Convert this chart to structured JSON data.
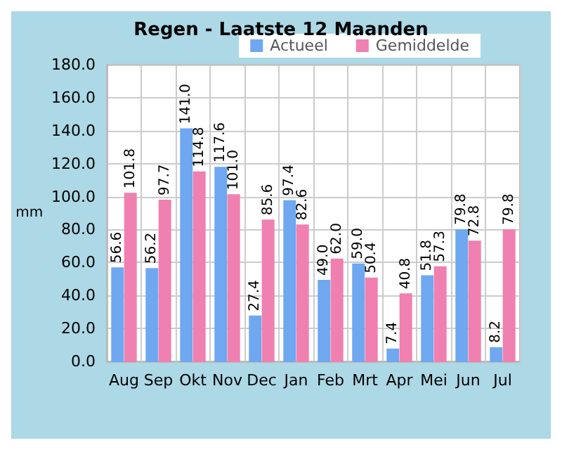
{
  "chart_data": {
    "type": "bar",
    "title": "Regen - Laatste 12 Maanden",
    "ylabel": "mm",
    "categories": [
      "Aug",
      "Sep",
      "Okt",
      "Nov",
      "Dec",
      "Jan",
      "Feb",
      "Mrt",
      "Apr",
      "Mei",
      "Jun",
      "Jul"
    ],
    "series": [
      {
        "name": "Actueel",
        "color": "#6fa8f0",
        "values": [
          56.6,
          56.2,
          141.0,
          117.6,
          27.4,
          97.4,
          49.0,
          59.0,
          7.4,
          51.8,
          79.8,
          8.2
        ],
        "value_labels": [
          "56.6",
          "56.2",
          "141.0",
          "117.6",
          "27.4",
          "97.4",
          "49.0",
          "59.0",
          "7.4",
          "51.8",
          "79.8",
          "8.2"
        ]
      },
      {
        "name": "Gemiddelde",
        "color": "#f080b0",
        "values": [
          101.8,
          97.7,
          114.8,
          101.0,
          85.6,
          82.6,
          62.0,
          50.4,
          40.8,
          57.3,
          72.8,
          79.8
        ],
        "value_labels": [
          "101.8",
          "97.7",
          "114.8",
          "101.0",
          "85.6",
          "82.6",
          "62.0",
          "50.4",
          "40.8",
          "57.3",
          "72.8",
          "79.8"
        ]
      }
    ],
    "ylim": [
      0,
      180
    ],
    "yticks": [
      {
        "value": 0,
        "label": "0.0"
      },
      {
        "value": 20,
        "label": "20.0"
      },
      {
        "value": 40,
        "label": "40.0"
      },
      {
        "value": 60,
        "label": "60.0"
      },
      {
        "value": 80,
        "label": "80.0"
      },
      {
        "value": 100,
        "label": "100.0"
      },
      {
        "value": 120,
        "label": "120.0"
      },
      {
        "value": 140,
        "label": "140.0"
      },
      {
        "value": 160,
        "label": "160.0"
      },
      {
        "value": 180,
        "label": "180.0"
      }
    ],
    "grid": true,
    "legend": "top right"
  }
}
